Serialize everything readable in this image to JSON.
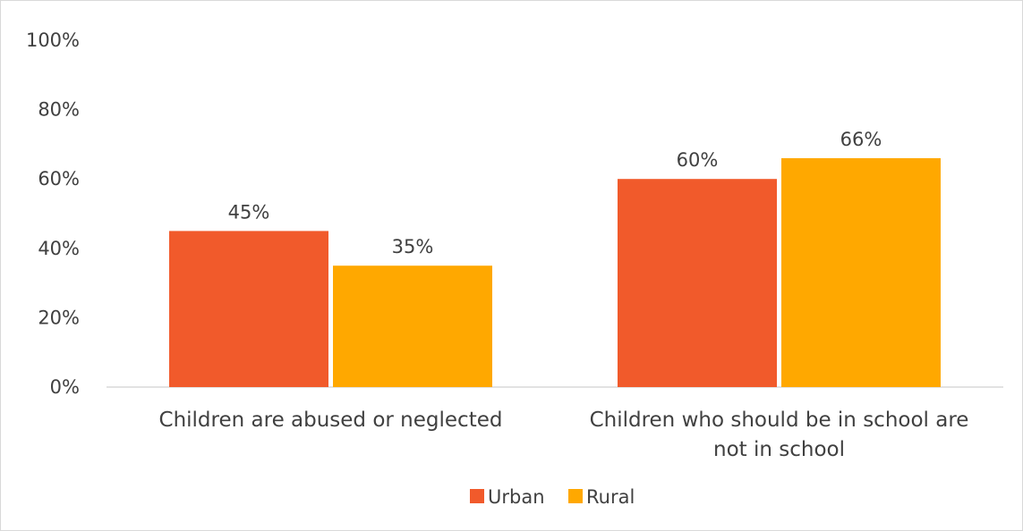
{
  "chart_data": {
    "type": "bar",
    "title": "",
    "xlabel": "",
    "ylabel": "",
    "ylim": [
      0,
      100
    ],
    "yticks": [
      0,
      20,
      40,
      60,
      80,
      100
    ],
    "ytick_format": "{v}%",
    "categories": [
      [
        "Children are abused or neglected"
      ],
      [
        "Children who should be in school are",
        "not in school"
      ]
    ],
    "series": [
      {
        "name": "Urban",
        "color": "#f15a2b",
        "values": [
          45,
          60
        ],
        "labels": [
          "45%",
          "60%"
        ]
      },
      {
        "name": "Rural",
        "color": "#ffa800",
        "values": [
          35,
          66
        ],
        "labels": [
          "35%",
          "66%"
        ]
      }
    ],
    "grid": false,
    "legend": "bottom"
  }
}
